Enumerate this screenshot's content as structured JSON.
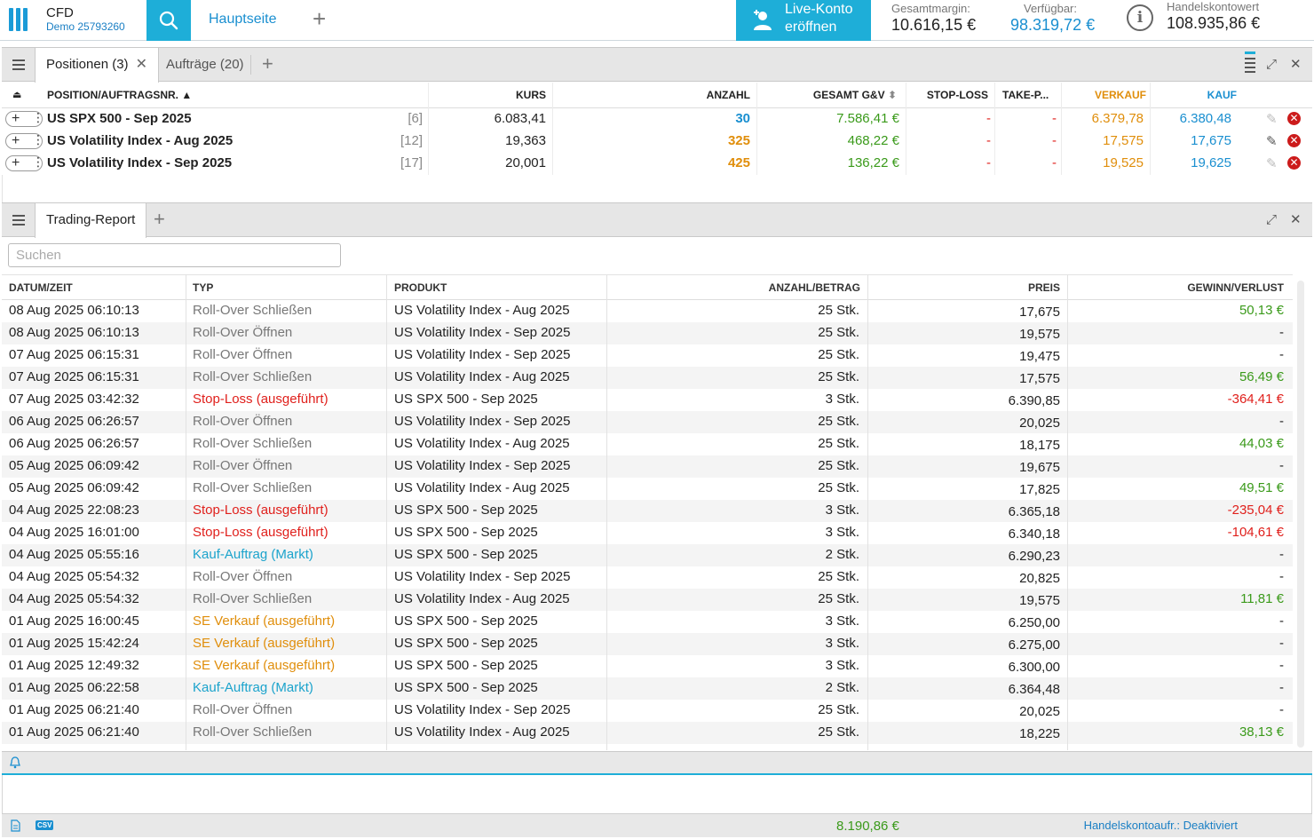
{
  "header": {
    "brand": "CFD",
    "account": "Demo 25793260",
    "home_tab": "Hauptseite",
    "live_line1": "Live-Konto",
    "live_line2": "eröffnen",
    "margin_label": "Gesamtmargin:",
    "margin_value": "10.616,15 €",
    "available_label": "Verfügbar:",
    "available_value": "98.319,72 €",
    "account_value_label": "Handelskontowert",
    "account_value": "108.935,86 €"
  },
  "positions_panel": {
    "tab_positions": "Positionen (3)",
    "tab_orders": "Aufträge (20)",
    "columns": {
      "position": "POSITION/AUFTRAGSNR.",
      "kurs": "KURS",
      "anzahl": "ANZAHL",
      "gesamt": "GESAMT G&V",
      "stop": "STOP-LOSS",
      "take": "TAKE-P...",
      "verkauf": "VERKAUF",
      "kauf": "KAUF"
    },
    "rows": [
      {
        "name": "US SPX 500 - Sep 2025",
        "order": "[6]",
        "kurs": "6.083,41",
        "anzahl": "30",
        "pl": "7.586,41 €",
        "stop": "-",
        "take": "-",
        "sell": "6.379,78",
        "buy": "6.380,48"
      },
      {
        "name": "US Volatility Index - Aug 2025",
        "order": "[12]",
        "kurs": "19,363",
        "anzahl": "325",
        "pl": "468,22 €",
        "stop": "-",
        "take": "-",
        "sell": "17,575",
        "buy": "17,675"
      },
      {
        "name": "US Volatility Index - Sep 2025",
        "order": "[17]",
        "kurs": "20,001",
        "anzahl": "425",
        "pl": "136,22 €",
        "stop": "-",
        "take": "-",
        "sell": "19,525",
        "buy": "19,625"
      }
    ]
  },
  "report_panel": {
    "tab": "Trading-Report",
    "search_placeholder": "Suchen",
    "columns": {
      "datetime": "DATUM/ZEIT",
      "type": "TYP",
      "product": "PRODUKT",
      "amount": "ANZAHL/BETRAG",
      "price": "PREIS",
      "pl": "GEWINN/VERLUST"
    },
    "rows": [
      {
        "dt": "08 Aug 2025 06:10:13",
        "type": "Roll-Over Schließen",
        "kind": "grey",
        "product": "US Volatility Index - Aug 2025",
        "amount": "25 Stk.",
        "price": "17,675",
        "pl": "50,13 €",
        "plc": "green"
      },
      {
        "dt": "08 Aug 2025 06:10:13",
        "type": "Roll-Over Öffnen",
        "kind": "grey",
        "product": "US Volatility Index - Sep 2025",
        "amount": "25 Stk.",
        "price": "19,575",
        "pl": "-",
        "plc": "dark"
      },
      {
        "dt": "07 Aug 2025 06:15:31",
        "type": "Roll-Over Öffnen",
        "kind": "grey",
        "product": "US Volatility Index - Sep 2025",
        "amount": "25 Stk.",
        "price": "19,475",
        "pl": "-",
        "plc": "dark"
      },
      {
        "dt": "07 Aug 2025 06:15:31",
        "type": "Roll-Over Schließen",
        "kind": "grey",
        "product": "US Volatility Index - Aug 2025",
        "amount": "25 Stk.",
        "price": "17,575",
        "pl": "56,49 €",
        "plc": "green"
      },
      {
        "dt": "07 Aug 2025 03:42:32",
        "type": "Stop-Loss (ausgeführt)",
        "kind": "red",
        "product": "US SPX 500 - Sep 2025",
        "amount": "3 Stk.",
        "price": "6.390,85",
        "pl": "-364,41 €",
        "plc": "red"
      },
      {
        "dt": "06 Aug 2025 06:26:57",
        "type": "Roll-Over Öffnen",
        "kind": "grey",
        "product": "US Volatility Index - Sep 2025",
        "amount": "25 Stk.",
        "price": "20,025",
        "pl": "-",
        "plc": "dark"
      },
      {
        "dt": "06 Aug 2025 06:26:57",
        "type": "Roll-Over Schließen",
        "kind": "grey",
        "product": "US Volatility Index - Aug 2025",
        "amount": "25 Stk.",
        "price": "18,175",
        "pl": "44,03 €",
        "plc": "green"
      },
      {
        "dt": "05 Aug 2025 06:09:42",
        "type": "Roll-Over Öffnen",
        "kind": "grey",
        "product": "US Volatility Index - Sep 2025",
        "amount": "25 Stk.",
        "price": "19,675",
        "pl": "-",
        "plc": "dark"
      },
      {
        "dt": "05 Aug 2025 06:09:42",
        "type": "Roll-Over Schließen",
        "kind": "grey",
        "product": "US Volatility Index - Aug 2025",
        "amount": "25 Stk.",
        "price": "17,825",
        "pl": "49,51 €",
        "plc": "green"
      },
      {
        "dt": "04 Aug 2025 22:08:23",
        "type": "Stop-Loss (ausgeführt)",
        "kind": "red",
        "product": "US SPX 500 - Sep 2025",
        "amount": "3 Stk.",
        "price": "6.365,18",
        "pl": "-235,04 €",
        "plc": "red"
      },
      {
        "dt": "04 Aug 2025 16:01:00",
        "type": "Stop-Loss (ausgeführt)",
        "kind": "red",
        "product": "US SPX 500 - Sep 2025",
        "amount": "3 Stk.",
        "price": "6.340,18",
        "pl": "-104,61 €",
        "plc": "red"
      },
      {
        "dt": "04 Aug 2025 05:55:16",
        "type": "Kauf-Auftrag (Markt)",
        "kind": "teal",
        "product": "US SPX 500 - Sep 2025",
        "amount": "2 Stk.",
        "price": "6.290,23",
        "pl": "-",
        "plc": "dark"
      },
      {
        "dt": "04 Aug 2025 05:54:32",
        "type": "Roll-Over Öffnen",
        "kind": "grey",
        "product": "US Volatility Index - Sep 2025",
        "amount": "25 Stk.",
        "price": "20,825",
        "pl": "-",
        "plc": "dark"
      },
      {
        "dt": "04 Aug 2025 05:54:32",
        "type": "Roll-Over Schließen",
        "kind": "grey",
        "product": "US Volatility Index - Aug 2025",
        "amount": "25 Stk.",
        "price": "19,575",
        "pl": "11,81 €",
        "plc": "green"
      },
      {
        "dt": "01 Aug 2025 16:00:45",
        "type": "SE Verkauf (ausgeführt)",
        "kind": "orange",
        "product": "US SPX 500 - Sep 2025",
        "amount": "3 Stk.",
        "price": "6.250,00",
        "pl": "-",
        "plc": "dark"
      },
      {
        "dt": "01 Aug 2025 15:42:24",
        "type": "SE Verkauf (ausgeführt)",
        "kind": "orange",
        "product": "US SPX 500 - Sep 2025",
        "amount": "3 Stk.",
        "price": "6.275,00",
        "pl": "-",
        "plc": "dark"
      },
      {
        "dt": "01 Aug 2025 12:49:32",
        "type": "SE Verkauf (ausgeführt)",
        "kind": "orange",
        "product": "US SPX 500 - Sep 2025",
        "amount": "3 Stk.",
        "price": "6.300,00",
        "pl": "-",
        "plc": "dark"
      },
      {
        "dt": "01 Aug 2025 06:22:58",
        "type": "Kauf-Auftrag (Markt)",
        "kind": "teal",
        "product": "US SPX 500 - Sep 2025",
        "amount": "2 Stk.",
        "price": "6.364,48",
        "pl": "-",
        "plc": "dark"
      },
      {
        "dt": "01 Aug 2025 06:21:40",
        "type": "Roll-Over Öffnen",
        "kind": "grey",
        "product": "US Volatility Index - Sep 2025",
        "amount": "25 Stk.",
        "price": "20,025",
        "pl": "-",
        "plc": "dark"
      },
      {
        "dt": "01 Aug 2025 06:21:40",
        "type": "Roll-Over Schließen",
        "kind": "grey",
        "product": "US Volatility Index - Aug 2025",
        "amount": "25 Stk.",
        "price": "18,225",
        "pl": "38,13 €",
        "plc": "green"
      }
    ]
  },
  "footer": {
    "csv_label": "CSV",
    "total": "8.190,86 €",
    "status": "Handelskontoaufr.: Deaktiviert"
  },
  "colors": {
    "accent": "#1eaed8",
    "profit": "#3a9a1a",
    "loss": "#e0201c",
    "sell": "#e08e0b",
    "buy": "#1a8fd0"
  }
}
